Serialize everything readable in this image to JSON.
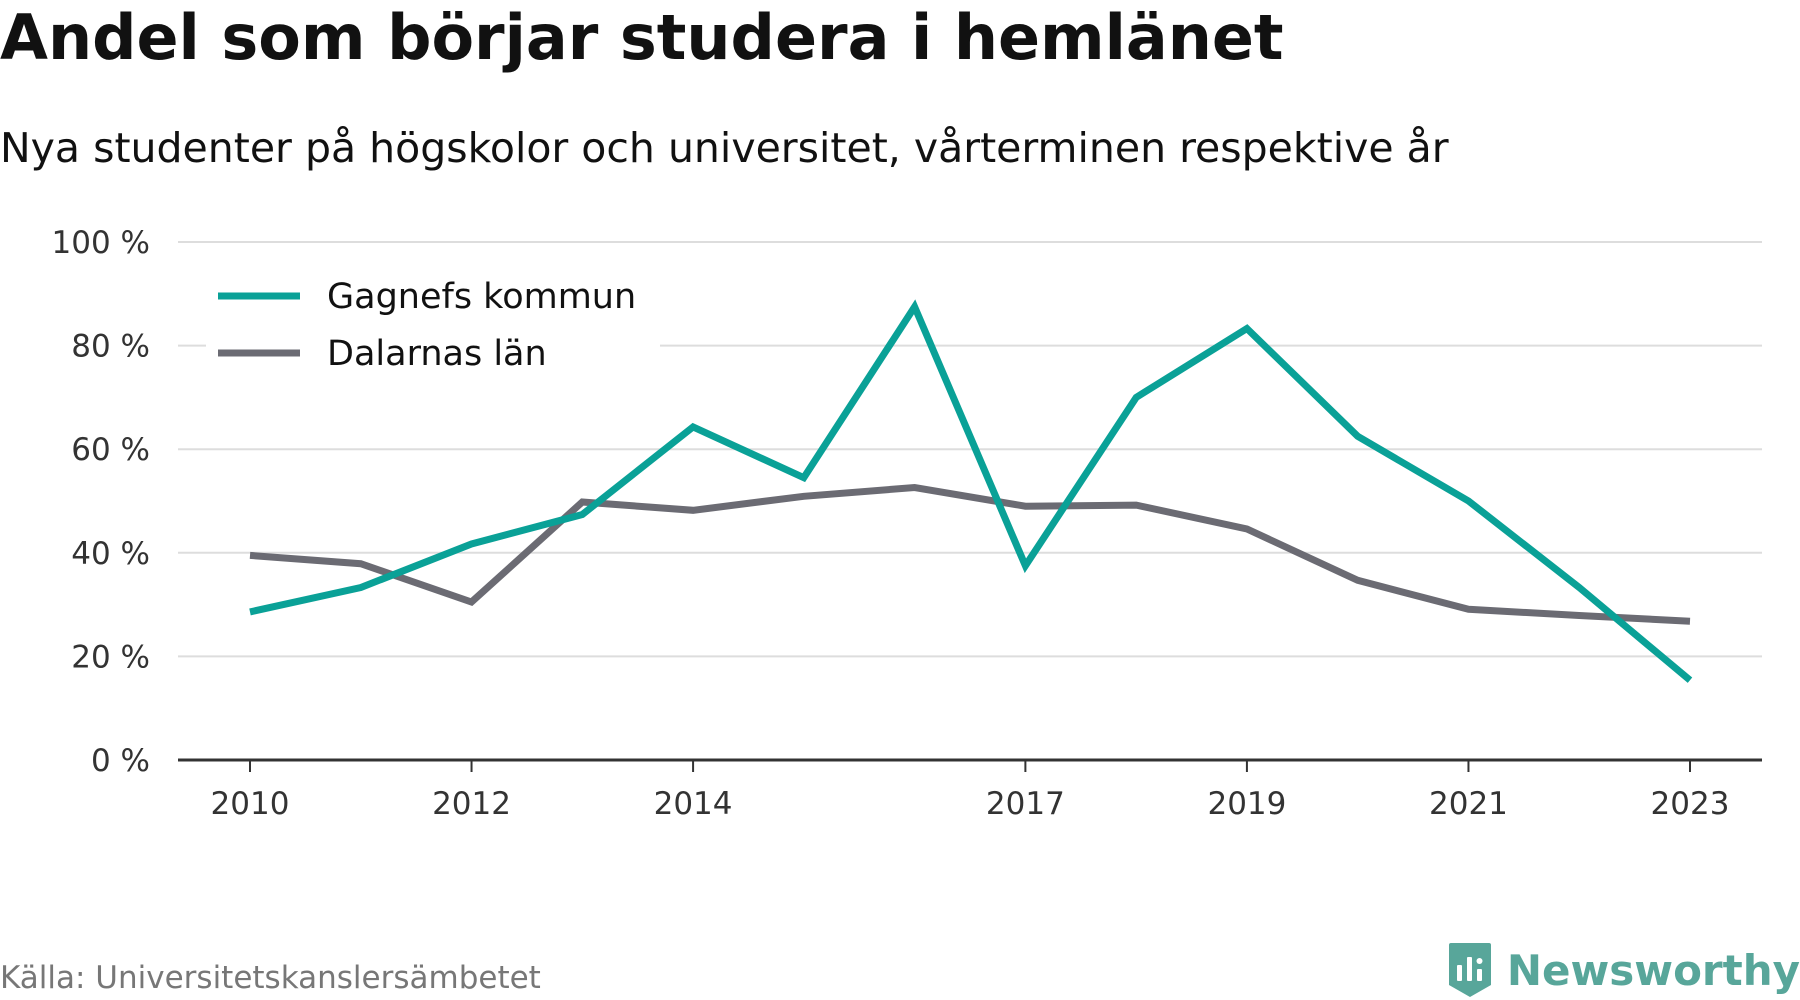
{
  "title": "Andel som börjar studera i hemlänet",
  "subtitle": "Nya studenter på högskolor och universitet, vårterminen respektive år",
  "source": "Källa: Universitetskanslersämbetet",
  "brand": {
    "name": "Newsworthy",
    "icon": "newsworthy-logo-icon",
    "color": "#58a69a"
  },
  "chart_data": {
    "type": "line",
    "x": [
      2010,
      2011,
      2012,
      2013,
      2014,
      2015,
      2016,
      2017,
      2018,
      2019,
      2020,
      2021,
      2022,
      2023
    ],
    "x_ticks": [
      "2010",
      "2012",
      "2014",
      "2017",
      "2019",
      "2021",
      "2023"
    ],
    "y_ticks": [
      "0 %",
      "20 %",
      "40 %",
      "60 %",
      "80 %",
      "100 %"
    ],
    "ylim": [
      0,
      100
    ],
    "grid": true,
    "legend_position": "top-left",
    "series": [
      {
        "name": "Gagnefs kommun",
        "color": "#0aa197",
        "values": [
          28.6,
          33.3,
          41.7,
          47.4,
          64.3,
          54.5,
          87.5,
          37.5,
          70.0,
          83.3,
          62.5,
          50.0,
          33.3,
          15.4
        ]
      },
      {
        "name": "Dalarnas län",
        "color": "#6b6b73",
        "values": [
          39.5,
          37.9,
          30.5,
          49.8,
          48.2,
          50.9,
          52.6,
          49.0,
          49.2,
          44.6,
          34.7,
          29.1,
          27.9,
          26.8
        ]
      }
    ]
  }
}
